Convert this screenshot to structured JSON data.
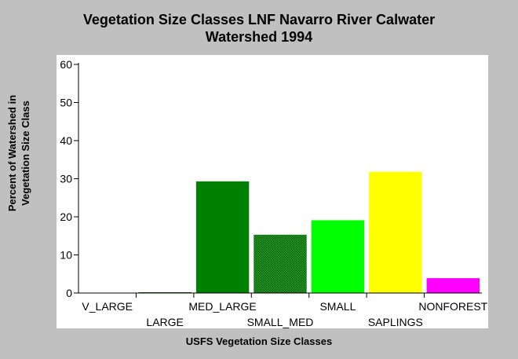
{
  "title_line1": "Vegetation Size Classes LNF Navarro River Calwater",
  "title_line2": "Watershed 1994",
  "chart_data": {
    "type": "bar",
    "title": "Vegetation Size Classes LNF Navarro River Calwater Watershed 1994",
    "xlabel": "USFS Vegetation Size Classes",
    "ylabel_line1": "Percent of Watershed in",
    "ylabel_line2": "Vegetation Size Class",
    "ylim": [
      0,
      60
    ],
    "yticks": [
      "0",
      "10",
      "20",
      "30",
      "40",
      "50",
      "60"
    ],
    "categories": [
      "V_LARGE",
      "LARGE",
      "MED_LARGE",
      "SMALL_MED",
      "SMALL",
      "SAPLINGS",
      "NONFOREST"
    ],
    "values": [
      0,
      0.2,
      29.3,
      15.3,
      19.1,
      31.8,
      3.9
    ],
    "colors": [
      "#006400",
      "#006400",
      "#008000",
      "#1f7a1f",
      "#00ff00",
      "#ffff00",
      "#ff00ff"
    ],
    "grid": false,
    "legend": "none"
  }
}
